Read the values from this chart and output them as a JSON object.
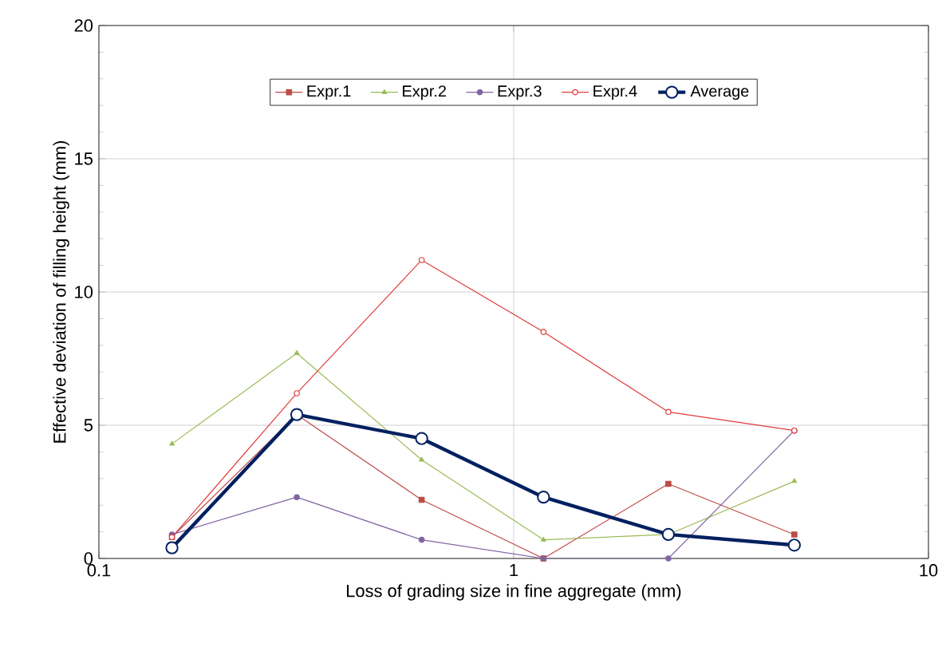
{
  "chart_data": {
    "type": "line",
    "xlabel": "Loss of grading size in fine aggregate (mm)",
    "ylabel": "Effective deviation of filling height (mm)",
    "x": [
      0.15,
      0.3,
      0.6,
      1.18,
      2.36,
      4.75
    ],
    "series": [
      {
        "name": "Expr.1",
        "color": "#be4b48",
        "marker": "square",
        "values": [
          0.8,
          5.4,
          2.2,
          0,
          2.8,
          0.9
        ]
      },
      {
        "name": "Expr.2",
        "color": "#9bbb59",
        "marker": "triangle",
        "values": [
          4.3,
          7.7,
          3.7,
          0.7,
          0.9,
          2.9
        ]
      },
      {
        "name": "Expr.3",
        "color": "#8064a2",
        "marker": "circle",
        "values": [
          0.9,
          2.3,
          0.7,
          0,
          0,
          4.8
        ]
      },
      {
        "name": "Expr.4",
        "color": "#e03c3c",
        "marker": "circle",
        "values": [
          0.8,
          6.2,
          11.2,
          8.5,
          5.5,
          4.8
        ]
      },
      {
        "name": "Average",
        "color": "#002060",
        "marker": "circle",
        "values": [
          0.4,
          5.4,
          4.5,
          2.3,
          0.9,
          0.5
        ]
      }
    ],
    "log": "x",
    "xlim": [
      0.1,
      10
    ],
    "xticks": [
      0.1,
      1,
      10
    ],
    "ylim": [
      0,
      20
    ],
    "yticks": [
      0,
      5,
      10,
      15,
      20
    ],
    "grid": true,
    "legend": "top"
  }
}
